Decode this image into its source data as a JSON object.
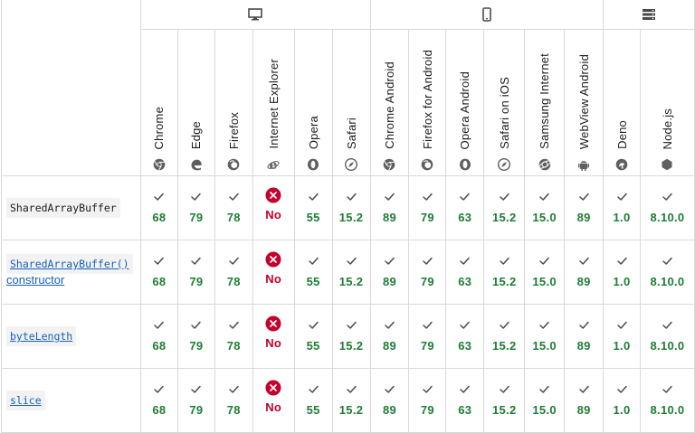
{
  "platforms": [
    {
      "name": "desktop",
      "icon": "desktop-icon",
      "span": 6
    },
    {
      "name": "mobile",
      "icon": "mobile-icon",
      "span": 6
    },
    {
      "name": "server",
      "icon": "server-icon",
      "span": 2
    }
  ],
  "browsers": [
    {
      "label": "Chrome",
      "icon": "chrome-icon"
    },
    {
      "label": "Edge",
      "icon": "edge-icon"
    },
    {
      "label": "Firefox",
      "icon": "firefox-icon"
    },
    {
      "label": "Internet Explorer",
      "icon": "internet-explorer-icon"
    },
    {
      "label": "Opera",
      "icon": "opera-icon"
    },
    {
      "label": "Safari",
      "icon": "safari-icon"
    },
    {
      "label": "Chrome Android",
      "icon": "chrome-icon"
    },
    {
      "label": "Firefox for Android",
      "icon": "firefox-icon"
    },
    {
      "label": "Opera Android",
      "icon": "opera-icon"
    },
    {
      "label": "Safari on iOS",
      "icon": "safari-icon"
    },
    {
      "label": "Samsung Internet",
      "icon": "samsung-internet-icon"
    },
    {
      "label": "WebView Android",
      "icon": "android-icon"
    },
    {
      "label": "Deno",
      "icon": "deno-icon"
    },
    {
      "label": "Node.js",
      "icon": "nodejs-icon"
    }
  ],
  "rows": [
    {
      "feature": "SharedArrayBuffer",
      "feature_suffix": "",
      "is_link": false,
      "support": [
        "68",
        "79",
        "78",
        "No",
        "55",
        "15.2",
        "89",
        "79",
        "63",
        "15.2",
        "15.0",
        "89",
        "1.0",
        "8.10.0"
      ]
    },
    {
      "feature": "SharedArrayBuffer()",
      "feature_suffix": "constructor",
      "is_link": true,
      "support": [
        "68",
        "79",
        "78",
        "No",
        "55",
        "15.2",
        "89",
        "79",
        "63",
        "15.2",
        "15.0",
        "89",
        "1.0",
        "8.10.0"
      ]
    },
    {
      "feature": "byteLength",
      "feature_suffix": "",
      "is_link": true,
      "support": [
        "68",
        "79",
        "78",
        "No",
        "55",
        "15.2",
        "89",
        "79",
        "63",
        "15.2",
        "15.0",
        "89",
        "1.0",
        "8.10.0"
      ]
    },
    {
      "feature": "slice",
      "feature_suffix": "",
      "is_link": true,
      "support": [
        "68",
        "79",
        "78",
        "No",
        "55",
        "15.2",
        "89",
        "79",
        "63",
        "15.2",
        "15.0",
        "89",
        "1.0",
        "8.10.0"
      ]
    }
  ],
  "colors": {
    "yes": "#1e7d34",
    "no": "#c4002b",
    "border": "#d9d9d9",
    "link": "#1560bd"
  }
}
